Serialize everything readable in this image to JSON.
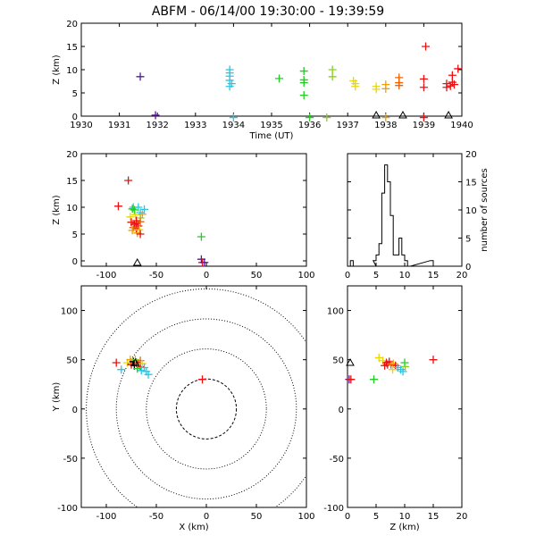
{
  "title": "ABFM - 06/14/00 19:30:00 - 19:39:59",
  "colors": {
    "purple": "#5a189a",
    "blue": "#2a2ab8",
    "cyan": "#20c8e8",
    "green": "#22cc22",
    "lime": "#88d020",
    "yellow": "#e8d800",
    "orange": "#f0a000",
    "dorange": "#f06000",
    "red": "#e81010",
    "black": "#000000"
  },
  "chart_data": [
    {
      "id": "time_height",
      "type": "scatter",
      "xlabel": "Time (UT)",
      "ylabel": "Z (km)",
      "xlim": [
        1930,
        1940
      ],
      "ylim": [
        0,
        20
      ],
      "xticks": [
        "1930",
        "1931",
        "1932",
        "1933",
        "1934",
        "1935",
        "1936",
        "1937",
        "1938",
        "1939",
        "1940"
      ],
      "yticks": [
        "0",
        "5",
        "10",
        "15",
        "20"
      ],
      "points": [
        {
          "x": 1931.55,
          "y": 8.5,
          "c": "purple"
        },
        {
          "x": 1931.95,
          "y": 0.2,
          "c": "purple"
        },
        {
          "x": 1933.9,
          "y": 10.0,
          "c": "cyan"
        },
        {
          "x": 1933.9,
          "y": 9.3,
          "c": "cyan"
        },
        {
          "x": 1933.9,
          "y": 8.6,
          "c": "cyan"
        },
        {
          "x": 1933.9,
          "y": 7.7,
          "c": "cyan"
        },
        {
          "x": 1933.95,
          "y": 7.0,
          "c": "cyan"
        },
        {
          "x": 1933.9,
          "y": 6.4,
          "c": "cyan"
        },
        {
          "x": 1934.0,
          "y": -0.3,
          "c": "cyan"
        },
        {
          "x": 1935.2,
          "y": 8.1,
          "c": "green"
        },
        {
          "x": 1935.85,
          "y": 9.7,
          "c": "green"
        },
        {
          "x": 1935.85,
          "y": 7.8,
          "c": "green"
        },
        {
          "x": 1935.85,
          "y": 7.2,
          "c": "green"
        },
        {
          "x": 1935.85,
          "y": 4.5,
          "c": "green"
        },
        {
          "x": 1936.0,
          "y": -0.3,
          "c": "green"
        },
        {
          "x": 1936.6,
          "y": 10.0,
          "c": "lime"
        },
        {
          "x": 1936.6,
          "y": 8.5,
          "c": "lime"
        },
        {
          "x": 1936.45,
          "y": -0.3,
          "c": "lime"
        },
        {
          "x": 1937.15,
          "y": 7.6,
          "c": "yellow"
        },
        {
          "x": 1937.2,
          "y": 7.0,
          "c": "yellow"
        },
        {
          "x": 1937.2,
          "y": 6.4,
          "c": "yellow"
        },
        {
          "x": 1937.75,
          "y": 6.4,
          "c": "yellow"
        },
        {
          "x": 1937.75,
          "y": 5.8,
          "c": "yellow"
        },
        {
          "x": 1938.0,
          "y": 6.8,
          "c": "orange"
        },
        {
          "x": 1938.0,
          "y": 5.9,
          "c": "orange"
        },
        {
          "x": 1938.35,
          "y": 8.3,
          "c": "dorange"
        },
        {
          "x": 1938.35,
          "y": 7.2,
          "c": "dorange"
        },
        {
          "x": 1938.35,
          "y": 6.6,
          "c": "dorange"
        },
        {
          "x": 1938.0,
          "y": -0.3,
          "c": "orange"
        },
        {
          "x": 1939.05,
          "y": 15.0,
          "c": "red"
        },
        {
          "x": 1939.0,
          "y": 8.0,
          "c": "red"
        },
        {
          "x": 1939.0,
          "y": 6.2,
          "c": "red"
        },
        {
          "x": 1939.0,
          "y": -0.3,
          "c": "red"
        },
        {
          "x": 1939.75,
          "y": 8.8,
          "c": "red"
        },
        {
          "x": 1939.9,
          "y": 10.2,
          "c": "red"
        },
        {
          "x": 1939.6,
          "y": 7.0,
          "c": "red"
        },
        {
          "x": 1939.7,
          "y": 6.5,
          "c": "red"
        },
        {
          "x": 1939.75,
          "y": 7.3,
          "c": "red"
        },
        {
          "x": 1939.6,
          "y": 6.2,
          "c": "red"
        },
        {
          "x": 1939.8,
          "y": 6.8,
          "c": "red"
        }
      ],
      "stations": [
        1937.75,
        1938.45,
        1939.65
      ]
    },
    {
      "id": "xz",
      "type": "scatter",
      "xlabel": "",
      "ylabel": "Z (km)",
      "xlim": [
        -125,
        100
      ],
      "ylim": [
        -1,
        20
      ],
      "xticks": [
        "-100",
        "-50",
        "0",
        "50",
        "100"
      ],
      "xtickvals": [
        -100,
        -50,
        0,
        50,
        100
      ],
      "yticks": [
        "0",
        "5",
        "10",
        "15",
        "20"
      ],
      "points": [
        {
          "x": -78,
          "y": 15.0,
          "c": "red"
        },
        {
          "x": -88,
          "y": 10.2,
          "c": "red"
        },
        {
          "x": -73,
          "y": 10.0,
          "c": "cyan"
        },
        {
          "x": -68,
          "y": 10.0,
          "c": "cyan"
        },
        {
          "x": -62,
          "y": 9.6,
          "c": "cyan"
        },
        {
          "x": -66,
          "y": 9.0,
          "c": "cyan"
        },
        {
          "x": -72,
          "y": 9.5,
          "c": "green"
        },
        {
          "x": -74,
          "y": 9.7,
          "c": "green"
        },
        {
          "x": -76,
          "y": 8.2,
          "c": "yellow"
        },
        {
          "x": -71,
          "y": 8.6,
          "c": "yellow"
        },
        {
          "x": -66,
          "y": 8.0,
          "c": "lime"
        },
        {
          "x": -64,
          "y": 8.7,
          "c": "orange"
        },
        {
          "x": -75,
          "y": 7.2,
          "c": "red"
        },
        {
          "x": -72,
          "y": 6.8,
          "c": "red"
        },
        {
          "x": -70,
          "y": 7.5,
          "c": "red"
        },
        {
          "x": -68,
          "y": 6.5,
          "c": "red"
        },
        {
          "x": -70,
          "y": 6.0,
          "c": "red"
        },
        {
          "x": -66,
          "y": 7.3,
          "c": "dorange"
        },
        {
          "x": -73,
          "y": 6.2,
          "c": "dorange"
        },
        {
          "x": -74,
          "y": 5.7,
          "c": "orange"
        },
        {
          "x": -67,
          "y": 5.8,
          "c": "yellow"
        },
        {
          "x": -69,
          "y": 5.2,
          "c": "orange"
        },
        {
          "x": -66,
          "y": 5.0,
          "c": "red"
        },
        {
          "x": -70,
          "y": 7.0,
          "c": "red"
        },
        {
          "x": -5,
          "y": 4.5,
          "c": "green"
        },
        {
          "x": -5,
          "y": 0.3,
          "c": "purple"
        },
        {
          "x": -4,
          "y": -0.3,
          "c": "red"
        },
        {
          "x": -2,
          "y": -0.3,
          "c": "purple"
        }
      ],
      "stations": [
        -69
      ]
    },
    {
      "id": "histogram",
      "type": "bar",
      "xlim": [
        0,
        20
      ],
      "ylim": [
        0,
        20
      ],
      "xticks": [
        "0",
        "5",
        "10",
        "15",
        "20"
      ],
      "yticks": [
        "0",
        "5",
        "10",
        "15",
        "20"
      ],
      "ylabel": "number of sources",
      "bin_width": 0.5,
      "bins": [
        {
          "x": 0.0,
          "count": 0
        },
        {
          "x": 0.5,
          "count": 1
        },
        {
          "x": 1.0,
          "count": 0
        },
        {
          "x": 4.5,
          "count": 0
        },
        {
          "x": 4.5,
          "count": 1
        },
        {
          "x": 5.0,
          "count": 2
        },
        {
          "x": 5.5,
          "count": 4
        },
        {
          "x": 6.0,
          "count": 13
        },
        {
          "x": 6.5,
          "count": 18
        },
        {
          "x": 7.0,
          "count": 15
        },
        {
          "x": 7.5,
          "count": 9
        },
        {
          "x": 8.0,
          "count": 2
        },
        {
          "x": 8.5,
          "count": 2
        },
        {
          "x": 9.0,
          "count": 5
        },
        {
          "x": 9.5,
          "count": 2
        },
        {
          "x": 10.0,
          "count": 1
        },
        {
          "x": 10.5,
          "count": 0
        },
        {
          "x": 14.5,
          "count": 1
        },
        {
          "x": 15.0,
          "count": 0
        }
      ]
    },
    {
      "id": "plan",
      "type": "scatter",
      "xlabel": "X (km)",
      "ylabel": "Y (km)",
      "xlim": [
        -125,
        100
      ],
      "ylim": [
        -100,
        125
      ],
      "xticks": [
        "-100",
        "-50",
        "0",
        "50",
        "100"
      ],
      "xtickvals": [
        -100,
        -50,
        0,
        50,
        100
      ],
      "yticks": [
        "-100",
        "-50",
        "0",
        "50",
        "100"
      ],
      "ytickvals": [
        -100,
        -50,
        0,
        50,
        100
      ],
      "range_rings_km": [
        30,
        60,
        90,
        120
      ],
      "points": [
        {
          "x": -90,
          "y": 47,
          "c": "red"
        },
        {
          "x": -85,
          "y": 40,
          "c": "cyan"
        },
        {
          "x": -79,
          "y": 47,
          "c": "yellow"
        },
        {
          "x": -76,
          "y": 50,
          "c": "orange"
        },
        {
          "x": -75,
          "y": 45,
          "c": "red"
        },
        {
          "x": -73,
          "y": 48,
          "c": "black"
        },
        {
          "x": -72,
          "y": 44,
          "c": "black"
        },
        {
          "x": -70,
          "y": 47,
          "c": "black"
        },
        {
          "x": -68,
          "y": 46,
          "c": "red"
        },
        {
          "x": -66,
          "y": 49,
          "c": "dorange"
        },
        {
          "x": -66,
          "y": 43,
          "c": "red"
        },
        {
          "x": -64,
          "y": 46,
          "c": "yellow"
        },
        {
          "x": -62,
          "y": 42,
          "c": "cyan"
        },
        {
          "x": -60,
          "y": 38,
          "c": "cyan"
        },
        {
          "x": -58,
          "y": 35,
          "c": "cyan"
        },
        {
          "x": -65,
          "y": 39,
          "c": "cyan"
        },
        {
          "x": -69,
          "y": 41,
          "c": "green"
        },
        {
          "x": -71,
          "y": 50,
          "c": "lime"
        },
        {
          "x": -4,
          "y": 30,
          "c": "red"
        }
      ],
      "stations": [
        -71
      ]
    },
    {
      "id": "zy",
      "type": "scatter",
      "xlabel": "Z (km)",
      "ylabel": "",
      "xlim": [
        0,
        20
      ],
      "ylim": [
        -100,
        125
      ],
      "xticks": [
        "0",
        "5",
        "10",
        "15",
        "20"
      ],
      "yticks": [
        "-100",
        "-50",
        "0",
        "50",
        "100"
      ],
      "ytickvals": [
        -100,
        -50,
        0,
        50,
        100
      ],
      "points": [
        {
          "x": 0.3,
          "y": 30,
          "c": "purple"
        },
        {
          "x": 0.6,
          "y": 30,
          "c": "red"
        },
        {
          "x": 4.6,
          "y": 30,
          "c": "green"
        },
        {
          "x": 15.0,
          "y": 50,
          "c": "red"
        },
        {
          "x": 5.5,
          "y": 52,
          "c": "yellow"
        },
        {
          "x": 6.2,
          "y": 49,
          "c": "yellow"
        },
        {
          "x": 6.8,
          "y": 47,
          "c": "red"
        },
        {
          "x": 7.0,
          "y": 45,
          "c": "red"
        },
        {
          "x": 7.3,
          "y": 48,
          "c": "red"
        },
        {
          "x": 7.6,
          "y": 45,
          "c": "dorange"
        },
        {
          "x": 8.0,
          "y": 46,
          "c": "orange"
        },
        {
          "x": 8.4,
          "y": 44,
          "c": "red"
        },
        {
          "x": 8.8,
          "y": 42,
          "c": "cyan"
        },
        {
          "x": 9.3,
          "y": 40,
          "c": "cyan"
        },
        {
          "x": 9.7,
          "y": 38,
          "c": "cyan"
        },
        {
          "x": 10.0,
          "y": 47,
          "c": "green"
        },
        {
          "x": 10.1,
          "y": 43,
          "c": "lime"
        },
        {
          "x": 7.9,
          "y": 40,
          "c": "yellow"
        },
        {
          "x": 6.5,
          "y": 44,
          "c": "red"
        }
      ],
      "stations": [
        0
      ]
    }
  ]
}
